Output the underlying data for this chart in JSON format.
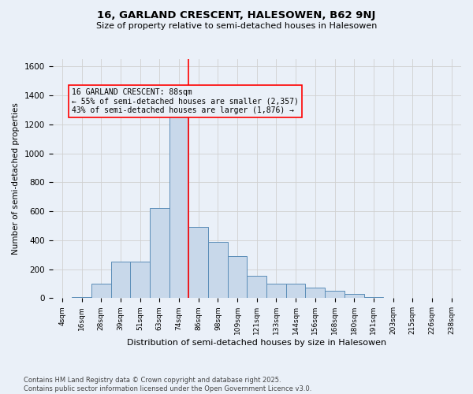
{
  "title": "16, GARLAND CRESCENT, HALESOWEN, B62 9NJ",
  "subtitle": "Size of property relative to semi-detached houses in Halesowen",
  "xlabel": "Distribution of semi-detached houses by size in Halesowen",
  "ylabel": "Number of semi-detached properties",
  "footer_line1": "Contains HM Land Registry data © Crown copyright and database right 2025.",
  "footer_line2": "Contains public sector information licensed under the Open Government Licence v3.0.",
  "bin_labels": [
    "4sqm",
    "16sqm",
    "28sqm",
    "39sqm",
    "51sqm",
    "63sqm",
    "74sqm",
    "86sqm",
    "98sqm",
    "109sqm",
    "121sqm",
    "133sqm",
    "144sqm",
    "156sqm",
    "168sqm",
    "180sqm",
    "191sqm",
    "203sqm",
    "215sqm",
    "226sqm",
    "238sqm"
  ],
  "bar_values": [
    2,
    5,
    100,
    250,
    250,
    620,
    1310,
    490,
    390,
    290,
    155,
    100,
    100,
    70,
    50,
    30,
    10,
    2,
    2,
    2,
    2
  ],
  "bar_color": "#c8d8ea",
  "bar_edge_color": "#5b8db8",
  "grid_color": "#d0d0d0",
  "bg_color": "#eaf0f8",
  "vline_x_index": 7,
  "vline_color": "red",
  "annotation_text": "16 GARLAND CRESCENT: 88sqm\n← 55% of semi-detached houses are smaller (2,357)\n43% of semi-detached houses are larger (1,876) →",
  "annotation_box_color": "red",
  "ylim": [
    0,
    1650
  ],
  "yticks": [
    0,
    200,
    400,
    600,
    800,
    1000,
    1200,
    1400,
    1600
  ]
}
